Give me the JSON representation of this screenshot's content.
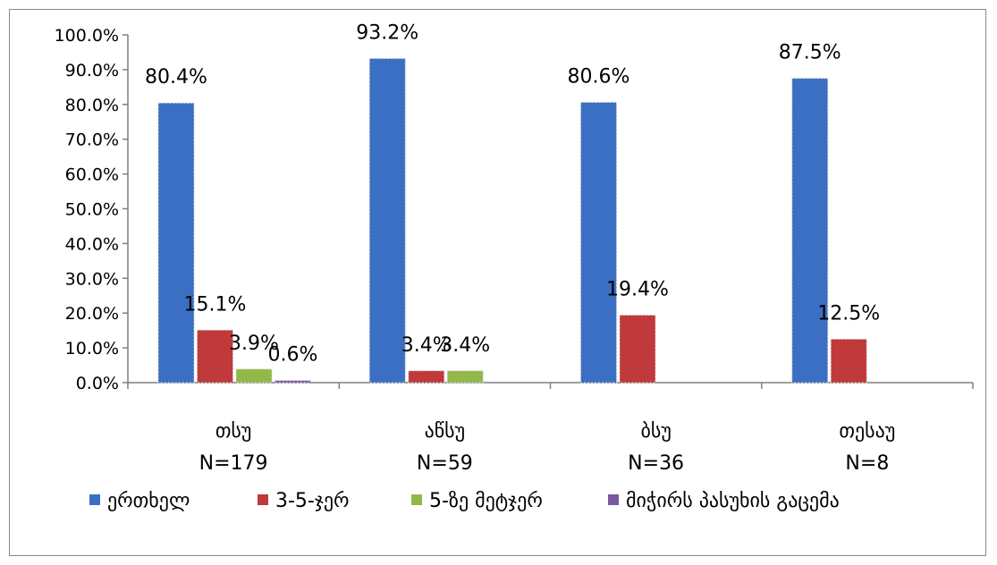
{
  "chart_data": {
    "type": "bar",
    "categories": [
      {
        "name": "თსუ",
        "n": "N=179"
      },
      {
        "name": "აწსუ",
        "n": "N=59"
      },
      {
        "name": "ბსუ",
        "n": "N=36"
      },
      {
        "name": "თესაუ",
        "n": "N=8"
      }
    ],
    "series": [
      {
        "name": "ერთხელ",
        "color": "#3a6fc4",
        "values": [
          80.4,
          93.2,
          80.6,
          87.5
        ],
        "labels": [
          "80.4%",
          "93.2%",
          "80.6%",
          "87.5%"
        ]
      },
      {
        "name": "3-5-ჯერ",
        "color": "#c0393b",
        "values": [
          15.1,
          3.4,
          19.4,
          12.5
        ],
        "labels": [
          "15.1%",
          "3.4%",
          "19.4%",
          "12.5%"
        ]
      },
      {
        "name": "5-ზე მეტჯერ",
        "color": "#93b84a",
        "values": [
          3.9,
          3.4,
          0,
          0
        ],
        "labels": [
          "3.9%",
          "3.4%",
          null,
          null
        ]
      },
      {
        "name": "მიჭირს პასუხის გაცემა",
        "color": "#7b57a2",
        "values": [
          0.6,
          0,
          0,
          0
        ],
        "labels": [
          "0.6%",
          null,
          null,
          null
        ]
      }
    ],
    "ylim": [
      0,
      100
    ],
    "yticks": [
      "0.0%",
      "10.0%",
      "20.0%",
      "30.0%",
      "40.0%",
      "50.0%",
      "60.0%",
      "70.0%",
      "80.0%",
      "90.0%",
      "100.0%"
    ],
    "legend_position": "bottom",
    "grid": false
  }
}
